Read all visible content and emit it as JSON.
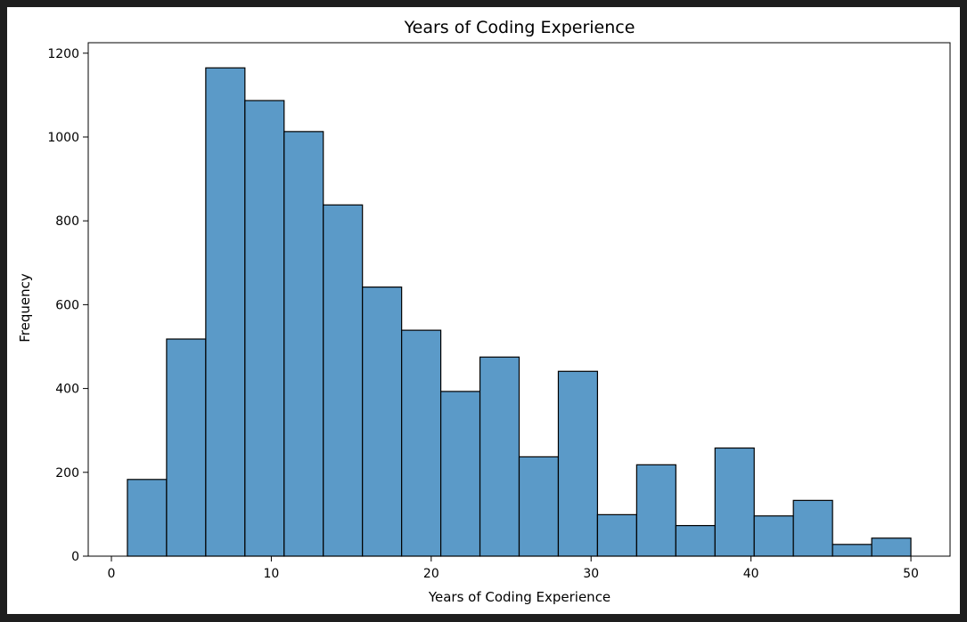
{
  "chart_data": {
    "type": "bar",
    "title": "Years of Coding Experience",
    "xlabel": "Years of Coding Experience",
    "ylabel": "Frequency",
    "xlim": [
      -1.45,
      52.45
    ],
    "ylim": [
      0,
      1225
    ],
    "xticks": [
      0,
      10,
      20,
      30,
      40,
      50
    ],
    "yticks": [
      0,
      200,
      400,
      600,
      800,
      1000,
      1200
    ],
    "bar_color": "#5b9ac8",
    "edge_color": "#000000",
    "grid": false,
    "bins": [
      {
        "x0": 1.0,
        "x1": 3.45,
        "value": 183
      },
      {
        "x0": 3.45,
        "x1": 5.9,
        "value": 518
      },
      {
        "x0": 5.9,
        "x1": 8.35,
        "value": 1165
      },
      {
        "x0": 8.35,
        "x1": 10.8,
        "value": 1087
      },
      {
        "x0": 10.8,
        "x1": 13.25,
        "value": 1013
      },
      {
        "x0": 13.25,
        "x1": 15.7,
        "value": 838
      },
      {
        "x0": 15.7,
        "x1": 18.15,
        "value": 642
      },
      {
        "x0": 18.15,
        "x1": 20.6,
        "value": 539
      },
      {
        "x0": 20.6,
        "x1": 23.05,
        "value": 393
      },
      {
        "x0": 23.05,
        "x1": 25.5,
        "value": 475
      },
      {
        "x0": 25.5,
        "x1": 27.95,
        "value": 237
      },
      {
        "x0": 27.95,
        "x1": 30.4,
        "value": 441
      },
      {
        "x0": 30.4,
        "x1": 32.85,
        "value": 99
      },
      {
        "x0": 32.85,
        "x1": 35.3,
        "value": 218
      },
      {
        "x0": 35.3,
        "x1": 37.75,
        "value": 73
      },
      {
        "x0": 37.75,
        "x1": 40.2,
        "value": 258
      },
      {
        "x0": 40.2,
        "x1": 42.65,
        "value": 96
      },
      {
        "x0": 42.65,
        "x1": 45.1,
        "value": 133
      },
      {
        "x0": 45.1,
        "x1": 47.55,
        "value": 28
      },
      {
        "x0": 47.55,
        "x1": 50.0,
        "value": 43
      }
    ]
  }
}
